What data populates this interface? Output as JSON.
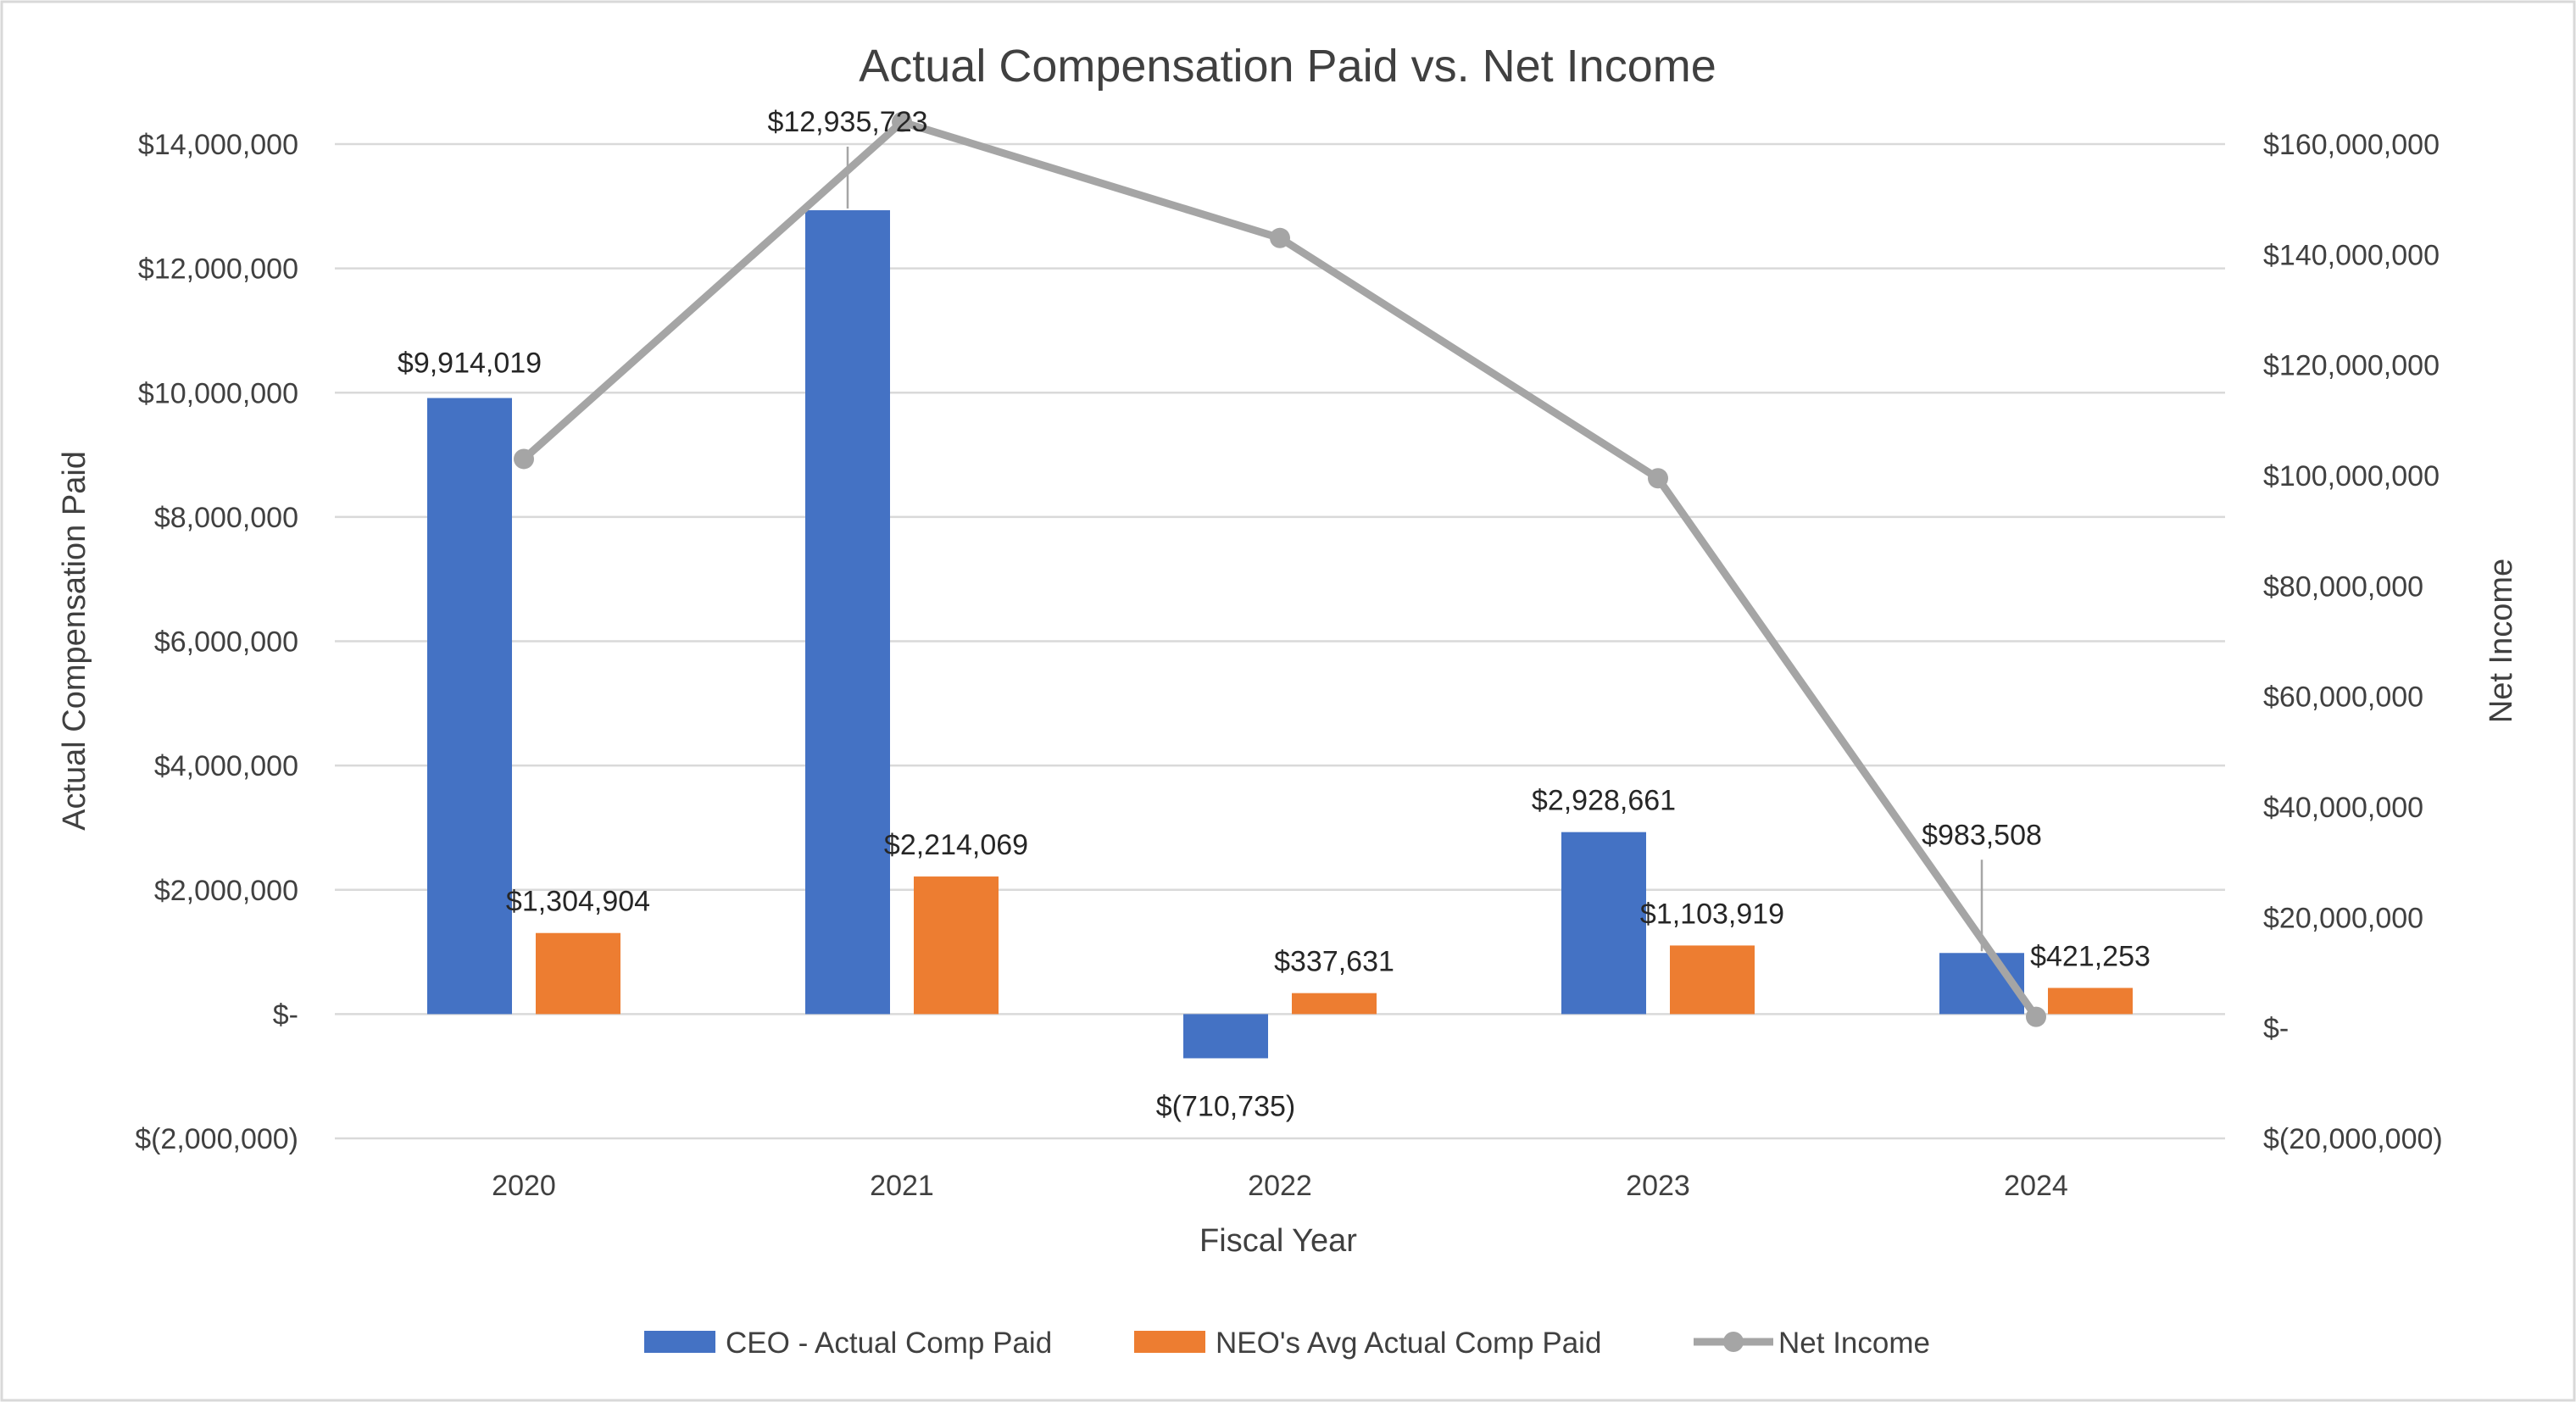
{
  "chart_data": {
    "type": "bar",
    "title": "Actual Compensation Paid vs. Net Income",
    "xlabel": "Fiscal Year",
    "ylabel": "Actual Compensation Paid",
    "y2label": "Net Income",
    "categories": [
      "2020",
      "2021",
      "2022",
      "2023",
      "2024"
    ],
    "ylim": [
      -2000000,
      14000000
    ],
    "y2lim": [
      -20000000,
      160000000
    ],
    "yticks": [
      {
        "value": 14000000,
        "label": "$14,000,000"
      },
      {
        "value": 12000000,
        "label": "$12,000,000"
      },
      {
        "value": 10000000,
        "label": "$10,000,000"
      },
      {
        "value": 8000000,
        "label": "$8,000,000"
      },
      {
        "value": 6000000,
        "label": "$6,000,000"
      },
      {
        "value": 4000000,
        "label": "$4,000,000"
      },
      {
        "value": 2000000,
        "label": "$2,000,000"
      },
      {
        "value": 0,
        "label": "$-"
      },
      {
        "value": -2000000,
        "label": "$(2,000,000)"
      }
    ],
    "y2ticks": [
      {
        "value": 160000000,
        "label": "$160,000,000"
      },
      {
        "value": 140000000,
        "label": "$140,000,000"
      },
      {
        "value": 120000000,
        "label": "$120,000,000"
      },
      {
        "value": 100000000,
        "label": "$100,000,000"
      },
      {
        "value": 80000000,
        "label": "$80,000,000"
      },
      {
        "value": 60000000,
        "label": "$60,000,000"
      },
      {
        "value": 40000000,
        "label": "$40,000,000"
      },
      {
        "value": 20000000,
        "label": "$20,000,000"
      },
      {
        "value": 0,
        "label": "$-"
      },
      {
        "value": -20000000,
        "label": "$(20,000,000)"
      }
    ],
    "series": [
      {
        "name": "CEO - Actual Comp Paid",
        "kind": "bar",
        "axis": "left",
        "color": "#4472c4",
        "values": [
          9914019,
          12935723,
          -710735,
          2928661,
          983508
        ],
        "labels": [
          "$9,914,019",
          "$12,935,723",
          "$(710,735)",
          "$2,928,661",
          "$983,508"
        ]
      },
      {
        "name": "NEO's Avg Actual Comp Paid",
        "kind": "bar",
        "axis": "left",
        "color": "#ed7d31",
        "values": [
          1304904,
          2214069,
          337631,
          1103919,
          421253
        ],
        "labels": [
          "$1,304,904",
          "$2,214,069",
          "$337,631",
          "$1,103,919",
          "$421,253"
        ]
      },
      {
        "name": "Net Income",
        "kind": "line",
        "axis": "right",
        "color": "#a5a5a5",
        "values": [
          103000000,
          164000000,
          143000000,
          99500000,
          2000000
        ]
      }
    ],
    "legend": "bottom"
  }
}
